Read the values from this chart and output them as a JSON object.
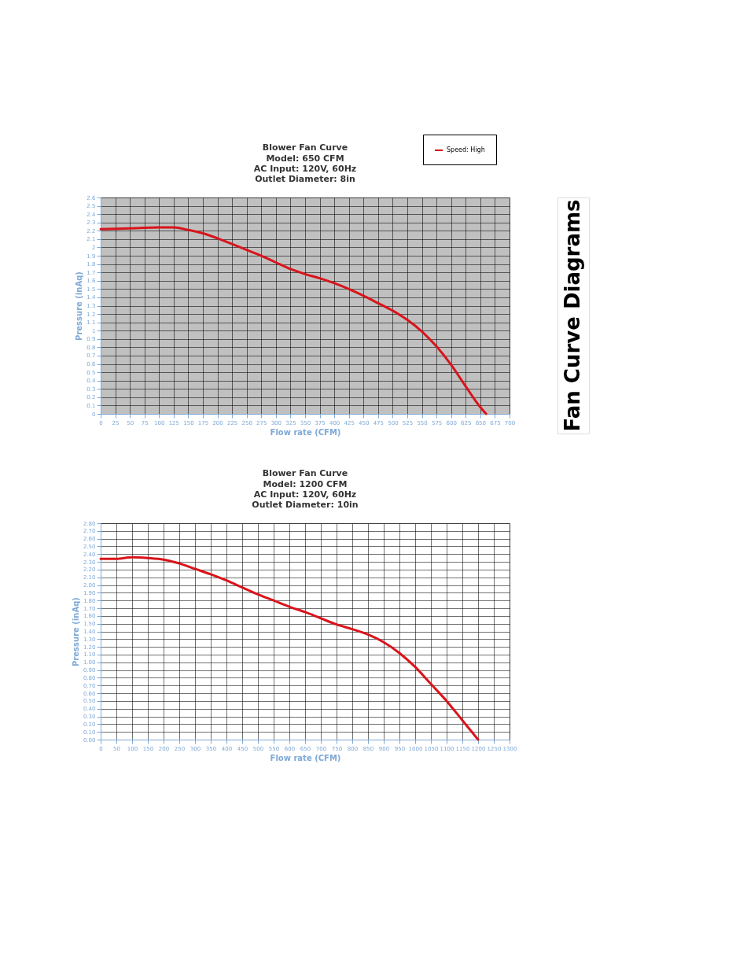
{
  "chart_data": [
    {
      "type": "line",
      "title": "Blower Fan Curve",
      "subtitle": "Model: 650 CFM\nAC Input: 120V, 60Hz\nOutlet Diameter: 8in",
      "xlabel": "Flow rate (CFM)",
      "ylabel": "Pressure (inAq)",
      "annotations": [
        "Fan Curve Diagrams"
      ],
      "x": [
        0,
        50,
        100,
        125,
        150,
        175,
        200,
        225,
        250,
        275,
        300,
        325,
        350,
        375,
        400,
        425,
        450,
        475,
        500,
        525,
        550,
        575,
        600,
        625,
        650,
        660
      ],
      "series": [
        {
          "name": "Speed: High",
          "color": "#d9141b",
          "values": [
            2.22,
            2.23,
            2.24,
            2.24,
            2.21,
            2.17,
            2.11,
            2.04,
            1.97,
            1.9,
            1.82,
            1.74,
            1.68,
            1.63,
            1.57,
            1.5,
            1.42,
            1.33,
            1.24,
            1.13,
            0.99,
            0.81,
            0.59,
            0.33,
            0.08,
            0
          ]
        }
      ],
      "xlim": [
        0,
        700
      ],
      "xticks": [
        0,
        25,
        50,
        75,
        100,
        125,
        150,
        175,
        200,
        225,
        250,
        275,
        300,
        325,
        350,
        375,
        400,
        425,
        450,
        475,
        500,
        525,
        550,
        575,
        600,
        625,
        650,
        675,
        700
      ],
      "ylim": [
        0,
        2.6
      ],
      "yticks": [
        0,
        0.1,
        0.2,
        0.3,
        0.4,
        0.5,
        0.6,
        0.7,
        0.8,
        0.9,
        1,
        1.1,
        1.2,
        1.3,
        1.4,
        1.5,
        1.6,
        1.7,
        1.8,
        1.9,
        2,
        2.1,
        2.2,
        2.3,
        2.4,
        2.5,
        2.6
      ],
      "grid": true,
      "legend": "top right"
    },
    {
      "type": "line",
      "title": "Blower Fan Curve",
      "subtitle": "Model: 1200 CFM\nAC Input: 120V, 60Hz\nOutlet Diameter: 10in",
      "xlabel": "Flow rate (CFM)",
      "ylabel": "Pressure (inAq)",
      "x": [
        0,
        50,
        100,
        150,
        200,
        250,
        300,
        350,
        400,
        450,
        500,
        550,
        600,
        650,
        700,
        750,
        800,
        850,
        900,
        950,
        1000,
        1050,
        1100,
        1150,
        1200
      ],
      "series": [
        {
          "color": "#d9141b",
          "values": [
            2.34,
            2.34,
            2.36,
            2.35,
            2.33,
            2.28,
            2.21,
            2.14,
            2.06,
            1.97,
            1.88,
            1.8,
            1.72,
            1.65,
            1.57,
            1.49,
            1.43,
            1.36,
            1.26,
            1.12,
            0.94,
            0.72,
            0.5,
            0.25,
            0
          ]
        }
      ],
      "xlim": [
        0,
        1300
      ],
      "xticks": [
        0,
        50,
        100,
        150,
        200,
        250,
        300,
        350,
        400,
        450,
        500,
        550,
        600,
        650,
        700,
        750,
        800,
        850,
        900,
        950,
        1000,
        1050,
        1100,
        1150,
        1200,
        1250,
        1300
      ],
      "ylim": [
        0,
        2.8
      ],
      "yticks": [
        {
          "value": 0,
          "label": "0.00"
        },
        {
          "value": 0.1,
          "label": "0.10"
        },
        {
          "value": 0.2,
          "label": "0.20"
        },
        {
          "value": 0.3,
          "label": "0.30"
        },
        {
          "value": 0.4,
          "label": "0.40"
        },
        {
          "value": 0.5,
          "label": "0.50"
        },
        {
          "value": 0.6,
          "label": "0.60"
        },
        {
          "value": 0.7,
          "label": "0.70"
        },
        {
          "value": 0.8,
          "label": "0.80"
        },
        {
          "value": 0.9,
          "label": "0.90"
        },
        {
          "value": 1,
          "label": "1.00"
        },
        {
          "value": 1.1,
          "label": "1.10"
        },
        {
          "value": 1.2,
          "label": "1.20"
        },
        {
          "value": 1.3,
          "label": "1.30"
        },
        {
          "value": 1.4,
          "label": "1.40"
        },
        {
          "value": 1.5,
          "label": "1.50"
        },
        {
          "value": 1.6,
          "label": "1.60"
        },
        {
          "value": 1.7,
          "label": "1.70"
        },
        {
          "value": 1.8,
          "label": "1.80"
        },
        {
          "value": 1.9,
          "label": "1.90"
        },
        {
          "value": 2,
          "label": "2.00"
        },
        {
          "value": 2.1,
          "label": "2.10"
        },
        {
          "value": 2.2,
          "label": "2.20"
        },
        {
          "value": 2.3,
          "label": "2.30"
        },
        {
          "value": 2.4,
          "label": "2.40"
        },
        {
          "value": 2.5,
          "label": "2.50"
        },
        {
          "value": 2.6,
          "label": "2.60"
        },
        {
          "value": 2.7,
          "label": "2.70"
        },
        {
          "value": 2.8,
          "label": "2.80"
        }
      ],
      "grid": true
    }
  ]
}
